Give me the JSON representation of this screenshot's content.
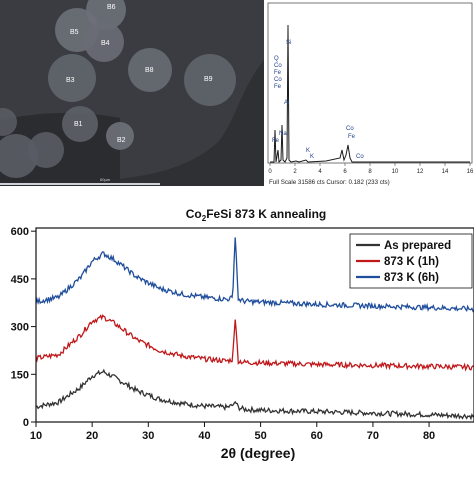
{
  "sem_image": {
    "labels": [
      "B6",
      "B5",
      "B4",
      "B3",
      "B8",
      "B9",
      "B1",
      "B2"
    ],
    "scale_bar_label": "60µm"
  },
  "eds_spectrum": {
    "peak_labels": [
      "Si",
      "Q",
      "Co",
      "Fe",
      "Co",
      "Fe",
      "Al",
      "Na",
      "Fe",
      "K",
      "K",
      "Co",
      "Fe",
      "Co"
    ],
    "x_ticks": [
      "0",
      "2",
      "4",
      "6",
      "8",
      "10",
      "12",
      "14",
      "16"
    ],
    "status": "Full Scale 31586 cts Cursor: 0.182  (233 cts)"
  },
  "chart_data": {
    "type": "line",
    "title": "Co2FeSi 873 K annealing",
    "title_parts": {
      "pre": "Co",
      "sub": "2",
      "post": "FeSi 873 K annealing"
    },
    "xlabel": "2θ (degree)",
    "ylabel": "",
    "xlim": [
      10,
      88
    ],
    "ylim": [
      0,
      610
    ],
    "x_ticks": [
      10,
      20,
      30,
      40,
      50,
      60,
      70,
      80
    ],
    "y_ticks": [
      0,
      150,
      300,
      450,
      600
    ],
    "grid": false,
    "legend_position": "top-right",
    "series": [
      {
        "name": "As prepared",
        "color": "#333333",
        "x": [
          10,
          14,
          18,
          20,
          22,
          24,
          28,
          32,
          36,
          40,
          44,
          45,
          45.5,
          46,
          47,
          50,
          60,
          70,
          80,
          88
        ],
        "y": [
          48,
          62,
          110,
          145,
          158,
          140,
          98,
          72,
          58,
          50,
          46,
          52,
          64,
          46,
          40,
          37,
          33,
          28,
          23,
          18
        ]
      },
      {
        "name": "873 K (1h)",
        "color": "#c0181a",
        "x": [
          10,
          14,
          18,
          20,
          22,
          24,
          28,
          32,
          36,
          40,
          44,
          45,
          45.5,
          46,
          47,
          50,
          60,
          70,
          80,
          88
        ],
        "y": [
          200,
          212,
          275,
          318,
          330,
          310,
          258,
          225,
          208,
          198,
          192,
          196,
          330,
          192,
          188,
          186,
          181,
          178,
          175,
          172
        ]
      },
      {
        "name": "873 K (6h)",
        "color": "#1f4e9c",
        "x": [
          10,
          14,
          18,
          20,
          22,
          24,
          28,
          32,
          36,
          40,
          44,
          45,
          45.5,
          46,
          47,
          50,
          60,
          70,
          80,
          88
        ],
        "y": [
          378,
          392,
          455,
          505,
          530,
          510,
          455,
          420,
          402,
          392,
          386,
          390,
          592,
          386,
          380,
          377,
          370,
          365,
          360,
          355
        ]
      }
    ]
  }
}
